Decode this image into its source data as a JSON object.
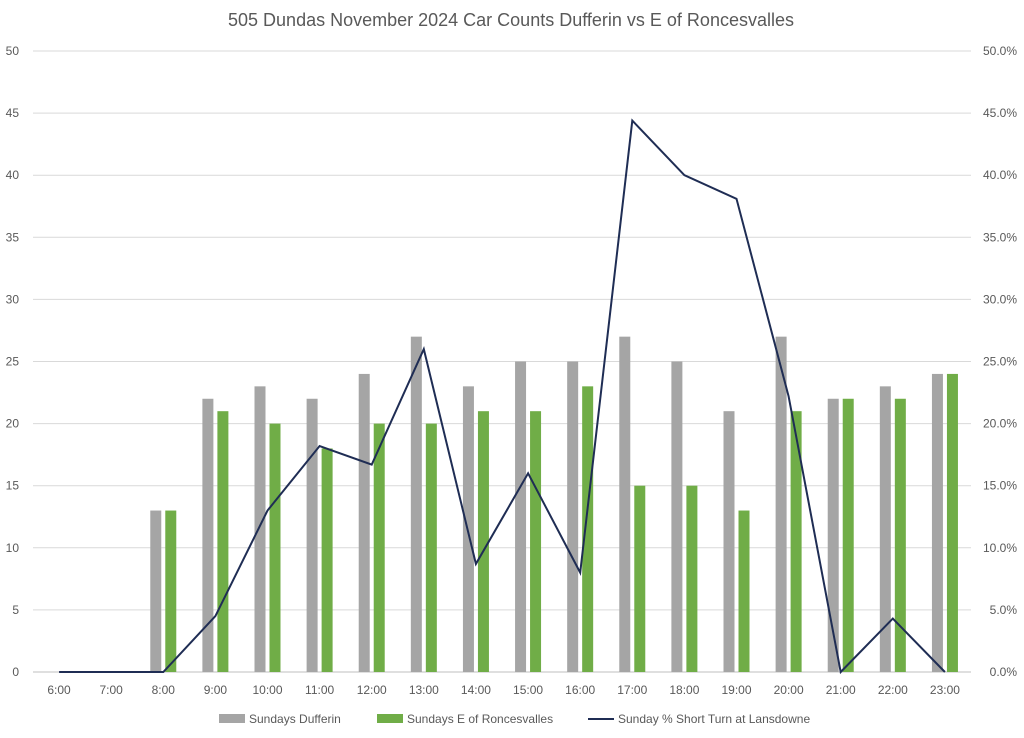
{
  "chart_data": {
    "type": "bar",
    "title": "505 Dundas November 2024 Car Counts Dufferin vs E of Roncesvalles",
    "categories": [
      "6:00",
      "7:00",
      "8:00",
      "9:00",
      "10:00",
      "11:00",
      "12:00",
      "13:00",
      "14:00",
      "15:00",
      "16:00",
      "17:00",
      "18:00",
      "19:00",
      "20:00",
      "21:00",
      "22:00",
      "23:00"
    ],
    "y_left": {
      "min": 0,
      "max": 50,
      "step": 5,
      "ticks": [
        "0",
        "5",
        "10",
        "15",
        "20",
        "25",
        "30",
        "35",
        "40",
        "45",
        "50"
      ]
    },
    "y_right": {
      "min": 0,
      "max": 0.5,
      "step": 0.05,
      "ticks": [
        "0.0%",
        "5.0%",
        "10.0%",
        "15.0%",
        "20.0%",
        "25.0%",
        "30.0%",
        "35.0%",
        "40.0%",
        "45.0%",
        "50.0%"
      ]
    },
    "grid": true,
    "legend_position": "bottom",
    "series": [
      {
        "name": "Sundays Dufferin",
        "type": "bar",
        "axis": "left",
        "color": "#a5a5a5",
        "values": [
          0,
          0,
          13,
          22,
          23,
          22,
          24,
          27,
          23,
          25,
          25,
          27,
          25,
          21,
          27,
          22,
          23,
          24
        ]
      },
      {
        "name": "Sundays E of Roncesvalles",
        "type": "bar",
        "axis": "left",
        "color": "#70ad47",
        "values": [
          0,
          0,
          13,
          21,
          20,
          18,
          20,
          20,
          21,
          21,
          23,
          15,
          15,
          13,
          21,
          22,
          22,
          24
        ]
      },
      {
        "name": "Sunday % Short Turn at Lansdowne",
        "type": "line",
        "axis": "right",
        "color": "#1f2d54",
        "values": [
          0,
          0,
          0,
          0.045,
          0.13,
          0.182,
          0.167,
          0.26,
          0.087,
          0.16,
          0.08,
          0.444,
          0.4,
          0.381,
          0.222,
          0,
          0.043,
          0
        ]
      }
    ]
  }
}
